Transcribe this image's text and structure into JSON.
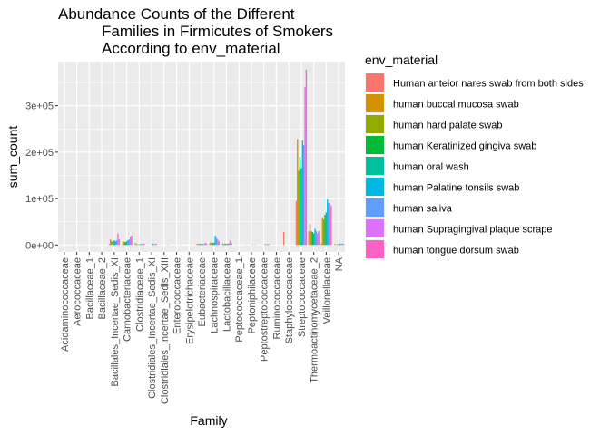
{
  "chart_data": {
    "type": "bar",
    "title_lines": [
      "Abundance Counts of the Different",
      "Families in Firmicutes of Smokers",
      "According to env_material"
    ],
    "xlabel": "Family",
    "ylabel": "sum_count",
    "ylim": [
      -15000,
      395000
    ],
    "yticks": [
      0,
      100000,
      200000,
      300000
    ],
    "ytick_labels": [
      "0e+00",
      "1e+05",
      "2e+05",
      "3e+05"
    ],
    "grid": true,
    "legend": {
      "title": "env_material",
      "position": "right"
    },
    "categories": [
      "Acidaminococcaceae",
      "Aerococcaceae",
      "Bacillaceae_1",
      "Bacillaceae_2",
      "Bacillales_Incertae_Sedis_XI",
      "Carnobacteriaceae",
      "Clostridiaceae_1",
      "Clostridiales_Incertae_Sedis_XI",
      "Clostridiales_Incertae_Sedis_XIII",
      "Enterococcaceae",
      "Erysipelotrichaceae",
      "Eubacteriaceae",
      "Lachnospiraceae",
      "Lactobacillaceae",
      "Peptococcaceae_1",
      "Peptoniphilaceae",
      "Peptostreptococcaceae",
      "Ruminococcaceae",
      "Staphylococcaceae",
      "Streptococcaceae",
      "Thermoactinomycetaceae_2",
      "Veillonellaceae",
      "NA"
    ],
    "series": [
      {
        "name": "Human anteior nares swab from both sides",
        "color": "#F8766D",
        "values": [
          0,
          0,
          0,
          0,
          2000,
          1000,
          0,
          0,
          0,
          0,
          0,
          1000,
          1000,
          0,
          0,
          500,
          0,
          0,
          28000,
          95000,
          30000,
          3000,
          0
        ]
      },
      {
        "name": "human buccal mucosa swab",
        "color": "#D39200",
        "values": [
          0,
          300,
          0,
          0,
          12000,
          8000,
          4000,
          0,
          0,
          0,
          0,
          3000,
          5000,
          3000,
          0,
          0,
          0,
          0,
          0,
          228000,
          45000,
          60000,
          2000
        ]
      },
      {
        "name": "human hard palate swab",
        "color": "#93AA00",
        "values": [
          0,
          200,
          0,
          0,
          8000,
          7000,
          2000,
          0,
          0,
          0,
          0,
          2000,
          5000,
          2000,
          0,
          0,
          0,
          0,
          0,
          160000,
          30000,
          55000,
          1000
        ]
      },
      {
        "name": "human Keratinized gingiva swab",
        "color": "#00BA38",
        "values": [
          0,
          0,
          0,
          0,
          6000,
          6000,
          1000,
          0,
          0,
          0,
          0,
          2000,
          4000,
          3000,
          0,
          0,
          0,
          0,
          0,
          190000,
          28000,
          65000,
          1000
        ]
      },
      {
        "name": "human oral wash",
        "color": "#00C19F",
        "values": [
          0,
          0,
          0,
          0,
          10000,
          8000,
          1000,
          0,
          0,
          0,
          0,
          2000,
          5000,
          2000,
          0,
          0,
          0,
          0,
          0,
          165000,
          25000,
          70000,
          2000
        ]
      },
      {
        "name": "human Palatine tonsils swab",
        "color": "#00B9E3",
        "values": [
          0,
          0,
          0,
          0,
          8000,
          10000,
          2000,
          3000,
          0,
          0,
          0,
          2000,
          20000,
          3000,
          0,
          1000,
          2000,
          0,
          0,
          225000,
          35000,
          98000,
          3000
        ]
      },
      {
        "name": "human saliva",
        "color": "#619CFF",
        "values": [
          0,
          0,
          0,
          0,
          10000,
          12000,
          2000,
          1000,
          0,
          0,
          0,
          2000,
          15000,
          3000,
          0,
          0,
          1000,
          0,
          0,
          215000,
          30000,
          90000,
          2000
        ]
      },
      {
        "name": "human Supragingival plaque scrape",
        "color": "#DB72FB",
        "values": [
          0,
          300,
          0,
          0,
          25000,
          18000,
          2000,
          3000,
          1000,
          0,
          0,
          5000,
          12000,
          10000,
          0,
          1000,
          2000,
          0,
          0,
          340000,
          25000,
          90000,
          3000
        ]
      },
      {
        "name": "human tongue dorsum swab",
        "color": "#FF61C3",
        "values": [
          0,
          0,
          0,
          0,
          12000,
          20000,
          3000,
          2000,
          0,
          0,
          0,
          3000,
          8000,
          5000,
          0,
          0,
          2000,
          0,
          0,
          378000,
          30000,
          85000,
          2000
        ]
      }
    ]
  }
}
